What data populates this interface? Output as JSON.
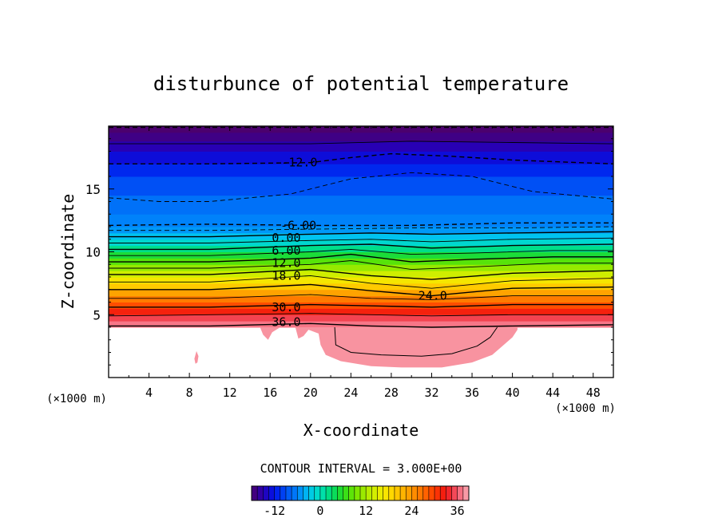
{
  "chart_data": {
    "type": "contour",
    "title": "disturbunce of potential temperature",
    "xlabel": "X-coordinate",
    "ylabel": "Z-coordinate",
    "x_unit_left": "(×1000 m)",
    "x_unit_right": "(×1000 m)",
    "xlim": [
      0,
      50
    ],
    "ylim": [
      0,
      20
    ],
    "x_ticks": [
      4,
      8,
      12,
      16,
      20,
      24,
      28,
      32,
      36,
      40,
      44,
      48
    ],
    "x_tick_labels": [
      "4",
      "8",
      "12",
      "16",
      "20",
      "24",
      "28",
      "32",
      "36",
      "40",
      "44",
      "48"
    ],
    "y_ticks": [
      5,
      10,
      15
    ],
    "y_tick_labels": [
      "5",
      "10",
      "15"
    ],
    "contour_interval_text": "CONTOUR INTERVAL = 3.000E+00",
    "contour_interval": 3.0,
    "contour_labels": [
      {
        "text": "-12.0",
        "x": 18.9,
        "z": 17.1
      },
      {
        "text": "-6.00",
        "x": 18.8,
        "z": 12.1
      },
      {
        "text": "0.00",
        "x": 17.6,
        "z": 11.1
      },
      {
        "text": "6.00",
        "x": 17.6,
        "z": 10.1
      },
      {
        "text": "12.0",
        "x": 17.6,
        "z": 9.1
      },
      {
        "text": "18.0",
        "x": 17.6,
        "z": 8.1
      },
      {
        "text": "24.0",
        "x": 32.1,
        "z": 6.5
      },
      {
        "text": "30.0",
        "x": 17.6,
        "z": 5.6
      },
      {
        "text": "36.0",
        "x": 17.6,
        "z": 4.4
      }
    ],
    "colorbar": {
      "range": [
        -18,
        39
      ],
      "ticks": [
        -12,
        0,
        12,
        24,
        36
      ],
      "tick_labels": [
        "-12",
        "0",
        "12",
        "24",
        "36"
      ]
    },
    "field_bands": [
      {
        "z_bottom": 0.0,
        "z_top": 4.0,
        "value": null
      },
      {
        "z_bottom": 4.0,
        "z_top": 4.5,
        "value": 37
      },
      {
        "z_bottom": 4.5,
        "z_top": 5.0,
        "value": 35
      },
      {
        "z_bottom": 5.0,
        "z_top": 5.5,
        "value": 32
      },
      {
        "z_bottom": 5.5,
        "z_top": 6.0,
        "value": 29
      },
      {
        "z_bottom": 6.0,
        "z_top": 6.5,
        "value": 26
      },
      {
        "z_bottom": 6.5,
        "z_top": 7.0,
        "value": 23
      },
      {
        "z_bottom": 7.0,
        "z_top": 7.5,
        "value": 20
      },
      {
        "z_bottom": 7.5,
        "z_top": 8.0,
        "value": 17
      },
      {
        "z_bottom": 8.0,
        "z_top": 8.5,
        "value": 14
      },
      {
        "z_bottom": 8.5,
        "z_top": 9.0,
        "value": 11
      },
      {
        "z_bottom": 9.0,
        "z_top": 9.5,
        "value": 8
      },
      {
        "z_bottom": 9.5,
        "z_top": 10.0,
        "value": 5
      },
      {
        "z_bottom": 10.0,
        "z_top": 10.5,
        "value": 2
      },
      {
        "z_bottom": 10.5,
        "z_top": 11.0,
        "value": -1
      },
      {
        "z_bottom": 11.0,
        "z_top": 11.5,
        "value": -3
      },
      {
        "z_bottom": 11.5,
        "z_top": 12.0,
        "value": -5
      },
      {
        "z_bottom": 12.0,
        "z_top": 13.0,
        "value": -6
      },
      {
        "z_bottom": 13.0,
        "z_top": 14.5,
        "value": -7
      },
      {
        "z_bottom": 14.5,
        "z_top": 16.0,
        "value": -9
      },
      {
        "z_bottom": 16.0,
        "z_top": 17.0,
        "value": -11
      },
      {
        "z_bottom": 17.0,
        "z_top": 18.0,
        "value": -13
      },
      {
        "z_bottom": 18.0,
        "z_top": 18.8,
        "value": -15
      },
      {
        "z_bottom": 18.8,
        "z_top": 19.5,
        "value": -17
      },
      {
        "z_bottom": 19.5,
        "z_top": 20.0,
        "value": -18
      }
    ],
    "contour_lines": [
      {
        "value": 36,
        "dashed": false,
        "points": [
          [
            0,
            4.1
          ],
          [
            10,
            4.1
          ],
          [
            20,
            4.3
          ],
          [
            26,
            4.1
          ],
          [
            32,
            4.0
          ],
          [
            40,
            4.1
          ],
          [
            50,
            4.2
          ]
        ]
      },
      {
        "value": 33,
        "dashed": false,
        "points": [
          [
            0,
            4.9
          ],
          [
            10,
            5.0
          ],
          [
            20,
            5.1
          ],
          [
            26,
            5.0
          ],
          [
            32,
            4.9
          ],
          [
            40,
            5.0
          ],
          [
            50,
            5.0
          ]
        ]
      },
      {
        "value": 30,
        "dashed": false,
        "points": [
          [
            0,
            5.6
          ],
          [
            10,
            5.6
          ],
          [
            20,
            5.8
          ],
          [
            26,
            5.7
          ],
          [
            32,
            5.6
          ],
          [
            40,
            5.8
          ],
          [
            50,
            5.8
          ]
        ]
      },
      {
        "value": 27,
        "dashed": false,
        "points": [
          [
            0,
            6.3
          ],
          [
            10,
            6.3
          ],
          [
            20,
            6.6
          ],
          [
            26,
            6.3
          ],
          [
            32,
            6.2
          ],
          [
            40,
            6.5
          ],
          [
            50,
            6.5
          ]
        ]
      },
      {
        "value": 24,
        "dashed": false,
        "points": [
          [
            0,
            7.0
          ],
          [
            10,
            7.0
          ],
          [
            20,
            7.4
          ],
          [
            26,
            6.9
          ],
          [
            32,
            6.5
          ],
          [
            40,
            7.1
          ],
          [
            50,
            7.2
          ]
        ]
      },
      {
        "value": 21,
        "dashed": false,
        "points": [
          [
            0,
            7.6
          ],
          [
            10,
            7.6
          ],
          [
            20,
            8.1
          ],
          [
            26,
            7.5
          ],
          [
            32,
            7.1
          ],
          [
            40,
            7.7
          ],
          [
            50,
            7.9
          ]
        ]
      },
      {
        "value": 18,
        "dashed": false,
        "points": [
          [
            0,
            8.2
          ],
          [
            10,
            8.2
          ],
          [
            20,
            8.6
          ],
          [
            26,
            8.1
          ],
          [
            32,
            7.8
          ],
          [
            40,
            8.3
          ],
          [
            50,
            8.5
          ]
        ]
      },
      {
        "value": 15,
        "dashed": false,
        "points": [
          [
            0,
            8.7
          ],
          [
            10,
            8.7
          ],
          [
            20,
            9.0
          ],
          [
            24,
            9.3
          ],
          [
            30,
            8.6
          ],
          [
            36,
            8.8
          ],
          [
            44,
            9.1
          ],
          [
            50,
            9.1
          ]
        ]
      },
      {
        "value": 12,
        "dashed": false,
        "points": [
          [
            0,
            9.2
          ],
          [
            10,
            9.2
          ],
          [
            20,
            9.5
          ],
          [
            24,
            9.8
          ],
          [
            30,
            9.2
          ],
          [
            36,
            9.4
          ],
          [
            44,
            9.6
          ],
          [
            50,
            9.6
          ]
        ]
      },
      {
        "value": 9,
        "dashed": false,
        "points": [
          [
            0,
            9.7
          ],
          [
            10,
            9.7
          ],
          [
            20,
            10.0
          ],
          [
            24,
            10.2
          ],
          [
            30,
            9.8
          ],
          [
            36,
            9.9
          ],
          [
            44,
            10.1
          ],
          [
            50,
            10.1
          ]
        ]
      },
      {
        "value": 6,
        "dashed": false,
        "points": [
          [
            0,
            10.2
          ],
          [
            10,
            10.2
          ],
          [
            20,
            10.5
          ],
          [
            26,
            10.6
          ],
          [
            32,
            10.3
          ],
          [
            40,
            10.5
          ],
          [
            50,
            10.6
          ]
        ]
      },
      {
        "value": 3,
        "dashed": false,
        "points": [
          [
            0,
            10.7
          ],
          [
            10,
            10.7
          ],
          [
            20,
            10.9
          ],
          [
            26,
            11.0
          ],
          [
            32,
            10.8
          ],
          [
            40,
            11.0
          ],
          [
            50,
            11.1
          ]
        ]
      },
      {
        "value": 0,
        "dashed": false,
        "points": [
          [
            0,
            11.2
          ],
          [
            10,
            11.2
          ],
          [
            20,
            11.4
          ],
          [
            26,
            11.5
          ],
          [
            32,
            11.4
          ],
          [
            40,
            11.5
          ],
          [
            50,
            11.6
          ]
        ]
      },
      {
        "value": -3,
        "dashed": true,
        "points": [
          [
            0,
            11.7
          ],
          [
            10,
            11.7
          ],
          [
            20,
            11.8
          ],
          [
            30,
            11.9
          ],
          [
            40,
            11.9
          ],
          [
            50,
            12.0
          ]
        ]
      },
      {
        "value": -6,
        "dashed": true,
        "points": [
          [
            0,
            12.1
          ],
          [
            10,
            12.2
          ],
          [
            20,
            12.1
          ],
          [
            30,
            12.1
          ],
          [
            40,
            12.3
          ],
          [
            50,
            12.3
          ]
        ]
      },
      {
        "value": -9,
        "dashed": true,
        "points": [
          [
            0,
            14.3
          ],
          [
            5,
            14.0
          ],
          [
            10,
            14.0
          ],
          [
            18,
            14.6
          ],
          [
            24,
            15.8
          ],
          [
            30,
            16.3
          ],
          [
            36,
            16.0
          ],
          [
            42,
            14.8
          ],
          [
            50,
            14.2
          ]
        ]
      },
      {
        "value": -12,
        "dashed": true,
        "points": [
          [
            0,
            17.0
          ],
          [
            10,
            17.0
          ],
          [
            20,
            17.1
          ],
          [
            24,
            17.5
          ],
          [
            28,
            17.8
          ],
          [
            34,
            17.6
          ],
          [
            40,
            17.3
          ],
          [
            50,
            17.0
          ]
        ]
      },
      {
        "value": -15,
        "dashed": false,
        "points": [
          [
            0,
            18.6
          ],
          [
            10,
            18.6
          ],
          [
            20,
            18.6
          ],
          [
            30,
            18.8
          ],
          [
            40,
            18.7
          ],
          [
            50,
            18.6
          ]
        ]
      },
      {
        "value": -18,
        "dashed": true,
        "points": [
          [
            0,
            19.9
          ],
          [
            25,
            19.9
          ],
          [
            50,
            19.9
          ]
        ]
      }
    ],
    "lower_region": {
      "value": 38,
      "points": [
        [
          15,
          4.0
        ],
        [
          15.3,
          3.4
        ],
        [
          15.8,
          3.0
        ],
        [
          16.2,
          3.6
        ],
        [
          17,
          4.0
        ],
        [
          18.5,
          4.0
        ],
        [
          18.8,
          3.1
        ],
        [
          19.3,
          3.3
        ],
        [
          19.8,
          3.8
        ],
        [
          20.8,
          3.5
        ],
        [
          21.0,
          2.6
        ],
        [
          21.5,
          1.8
        ],
        [
          23,
          1.3
        ],
        [
          26,
          0.9
        ],
        [
          29,
          0.8
        ],
        [
          33,
          0.8
        ],
        [
          36,
          1.2
        ],
        [
          38,
          1.8
        ],
        [
          39,
          2.5
        ],
        [
          40,
          3.2
        ],
        [
          40.5,
          3.8
        ],
        [
          40.5,
          4.0
        ]
      ]
    },
    "inner_contour": {
      "value": 36,
      "points": [
        [
          22.4,
          4.0
        ],
        [
          22.5,
          2.6
        ],
        [
          24,
          2.0
        ],
        [
          27,
          1.8
        ],
        [
          31,
          1.7
        ],
        [
          34,
          1.9
        ],
        [
          36.5,
          2.5
        ],
        [
          37.8,
          3.2
        ],
        [
          38.5,
          4.0
        ]
      ]
    },
    "isolated_blob": {
      "value": 38,
      "points": [
        [
          8.5,
          1.5
        ],
        [
          8.7,
          2.1
        ],
        [
          8.9,
          1.7
        ],
        [
          8.8,
          1.2
        ],
        [
          8.6,
          1.1
        ]
      ]
    }
  }
}
